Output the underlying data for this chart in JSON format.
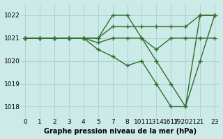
{
  "title": "Graphe pression niveau de la mer (hPa)",
  "bg_color": "#cceae7",
  "grid_color": "#b0d4d0",
  "line_color": "#2d6e2d",
  "ylim": [
    1017.5,
    1022.5
  ],
  "yticks": [
    1018,
    1019,
    1020,
    1021,
    1022
  ],
  "xlim": [
    -0.3,
    13.3
  ],
  "xtick_positions": [
    0,
    1,
    2,
    3,
    4,
    5,
    6,
    7,
    8,
    9,
    10,
    11,
    12,
    13
  ],
  "xtick_labels": [
    "0",
    "1",
    "2",
    "3",
    "4",
    "5",
    "7",
    "8",
    "1011",
    "1314",
    "1617",
    "192021",
    "21",
    "23"
  ],
  "series": [
    {
      "x": [
        0,
        1,
        2,
        3,
        4,
        5,
        6,
        7,
        8,
        9,
        10,
        11,
        12,
        13
      ],
      "y": [
        1021,
        1021,
        1021,
        1021,
        1021,
        1021,
        1022,
        1022,
        1021,
        1020,
        1019,
        1018,
        1022,
        1022
      ]
    },
    {
      "x": [
        0,
        1,
        2,
        3,
        4,
        5,
        6,
        7,
        8,
        9,
        10,
        11,
        12,
        13
      ],
      "y": [
        1021,
        1021,
        1021,
        1021,
        1021,
        1021,
        1021.5,
        1021.5,
        1021.5,
        1021.5,
        1021.5,
        1021.5,
        1022,
        1022
      ]
    },
    {
      "x": [
        0,
        1,
        2,
        3,
        4,
        5,
        6,
        7,
        8,
        9,
        10,
        11,
        12,
        13
      ],
      "y": [
        1021,
        1021,
        1021,
        1021,
        1021,
        1020.8,
        1021,
        1021,
        1021,
        1020.5,
        1021,
        1021,
        1021,
        1021
      ]
    },
    {
      "x": [
        0,
        1,
        2,
        3,
        4,
        5,
        6,
        7,
        8,
        9,
        10,
        11,
        12,
        13
      ],
      "y": [
        1021,
        1021,
        1021,
        1021,
        1021,
        1020.5,
        1020.2,
        1019.8,
        1020,
        1019,
        1018,
        1018,
        1020,
        1022
      ]
    }
  ],
  "marker_size": 4,
  "line_width": 1.0,
  "xlabel_fontsize": 6.5,
  "ylabel_fontsize": 6.5,
  "title_fontsize": 7.0
}
